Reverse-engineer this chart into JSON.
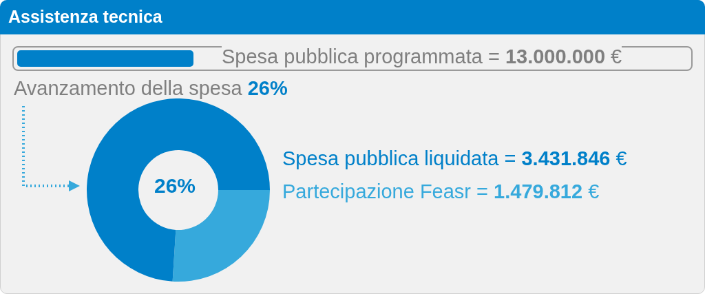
{
  "chart_data": {
    "type": "donut",
    "title": "Assistenza tecnica",
    "categories": [
      null,
      null
    ],
    "values": [
      26,
      74
    ],
    "colors": [
      "#36a9dc",
      "#0080c9"
    ],
    "legend": false,
    "annotations": [
      "Spesa pubblica programmata = 13.000.000 €",
      "Avanzamento della spesa 26%",
      "26%",
      "Spesa pubblica liquidata = 3.431.846 €",
      "Partecipazione Feasr = 1.479.812 €"
    ]
  }
}
